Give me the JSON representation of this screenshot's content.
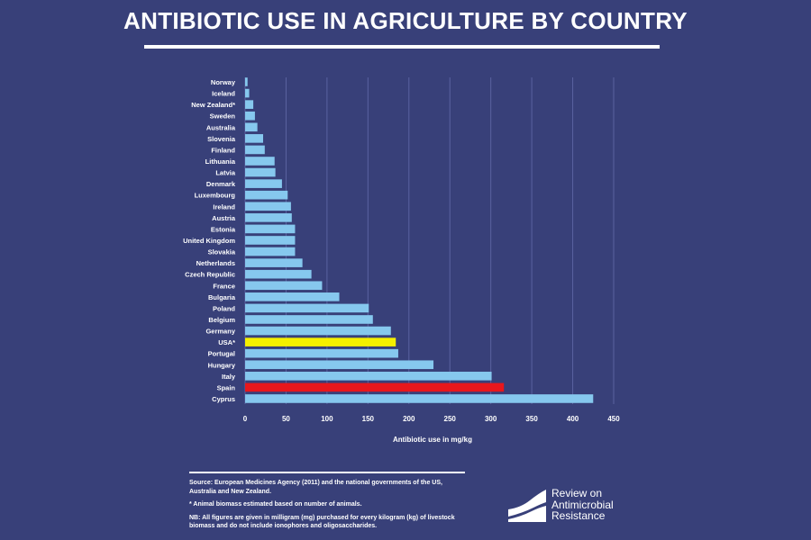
{
  "title": "ANTIBIOTIC USE IN AGRICULTURE BY COUNTRY",
  "colors": {
    "background": "#384079",
    "bar_default": "#86c8ee",
    "bar_usa": "#f5f000",
    "bar_spain": "#e8171c",
    "gridline": "#5a62a0"
  },
  "chart_data": {
    "type": "bar",
    "orientation": "horizontal",
    "title": "ANTIBIOTIC USE IN AGRICULTURE BY COUNTRY",
    "xlabel": "Antibiotic use in mg/kg",
    "ylabel": "",
    "xlim": [
      0,
      450
    ],
    "xticks": [
      "0",
      "50",
      "100",
      "150",
      "200",
      "250",
      "300",
      "350",
      "400",
      "450"
    ],
    "grid": true,
    "categories": [
      "Norway",
      "Iceland",
      "New Zealand*",
      "Sweden",
      "Australia",
      "Slovenia",
      "Finland",
      "Lithuania",
      "Latvia",
      "Denmark",
      "Luxembourg",
      "Ireland",
      "Austria",
      "Estonia",
      "United Kingdom",
      "Slovakia",
      "Netherlands",
      "Czech Republic",
      "France",
      "Bulgaria",
      "Poland",
      "Belgium",
      "Germany",
      "USA*",
      "Portugal",
      "Hungary",
      "Italy",
      "Spain",
      "Cyprus"
    ],
    "values": [
      3,
      5,
      10,
      12,
      15,
      22,
      24,
      36,
      37,
      45,
      52,
      56,
      57,
      61,
      61,
      61,
      70,
      81,
      94,
      115,
      151,
      156,
      178,
      184,
      187,
      230,
      301,
      316,
      425
    ],
    "highlights": {
      "USA*": "#f5f000",
      "Spain": "#e8171c"
    }
  },
  "notes": {
    "source": "Source: European Medicines Agency (2011) and the national governments of the US, Australia and New Zealand.",
    "footnote": "* Animal biomass estimated based on number of animals.",
    "nb": "NB: All figures are given in milligram (mg) purchased for every kilogram (kg) of livestock biomass and do not include ionophores and oligosaccharides."
  },
  "logo": {
    "line1": "Review on",
    "line2": "Antimicrobial",
    "line3": "Resistance"
  }
}
